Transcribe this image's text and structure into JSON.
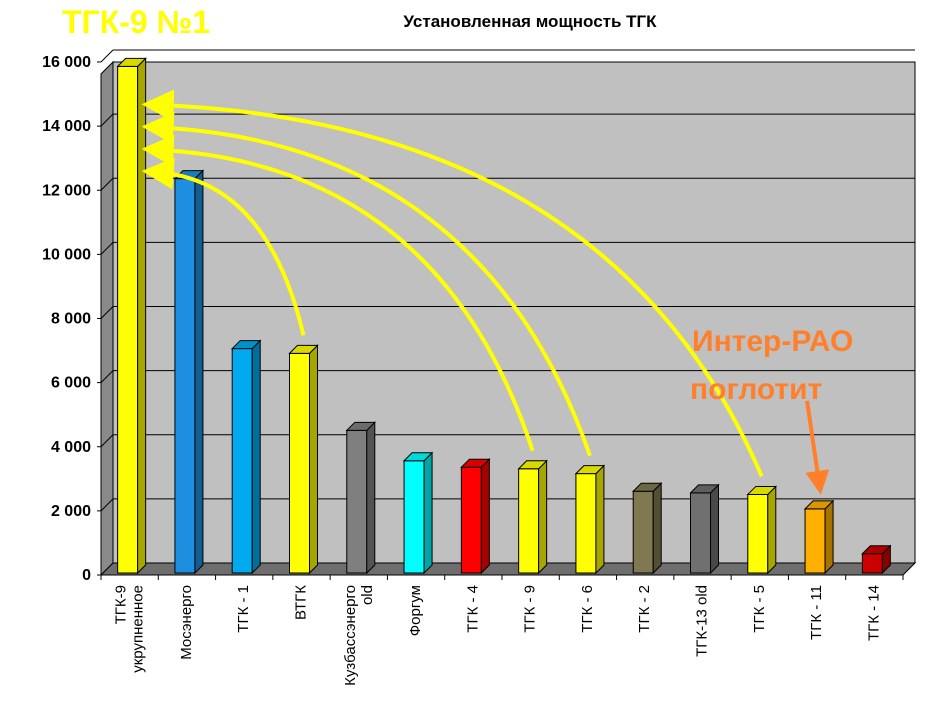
{
  "badge": "ТГК-9 №1",
  "annotation": {
    "line1": "Интер-РАО",
    "line2": "поглотит"
  },
  "colors": {
    "yellow": "#ffff00",
    "orange": "#ff7f2a",
    "plot_bg": "#c0c0c0"
  },
  "chart_data": {
    "type": "bar",
    "title": "Установленная мощность ТГК",
    "xlabel": "",
    "ylabel": "",
    "ylim": [
      0,
      16000
    ],
    "yticks": [
      0,
      2000,
      4000,
      6000,
      8000,
      10000,
      12000,
      14000,
      16000
    ],
    "ytick_labels": [
      "0",
      "2 000",
      "4 000",
      "6 000",
      "8 000",
      "10 000",
      "12 000",
      "14 000",
      "16 000"
    ],
    "grid": true,
    "categories": [
      [
        "ТГК-9",
        "укрупненное"
      ],
      [
        "Мосэнерго"
      ],
      [
        "ТГК - 1"
      ],
      [
        "ВТГК"
      ],
      [
        "Кузбассэнерго",
        "old"
      ],
      [
        "Форгум"
      ],
      [
        "ТГК - 4"
      ],
      [
        "ТГК - 9"
      ],
      [
        "ТГК - 6"
      ],
      [
        "ТГК - 2"
      ],
      [
        "ТГК-13 old"
      ],
      [
        "ТГК - 5"
      ],
      [
        "ТГК - 11"
      ],
      [
        "ТГК - 14"
      ]
    ],
    "values": [
      15800,
      12300,
      7000,
      6850,
      4450,
      3500,
      3300,
      3250,
      3100,
      2550,
      2500,
      2450,
      2000,
      600
    ],
    "bar_colors": [
      "#ffff00",
      "#1e8fe0",
      "#00aaee",
      "#ffff00",
      "#7f7f7f",
      "#00ffff",
      "#ff0000",
      "#ffff00",
      "#ffff00",
      "#807850",
      "#707070",
      "#ffff00",
      "#ffb000",
      "#cc0000"
    ]
  }
}
